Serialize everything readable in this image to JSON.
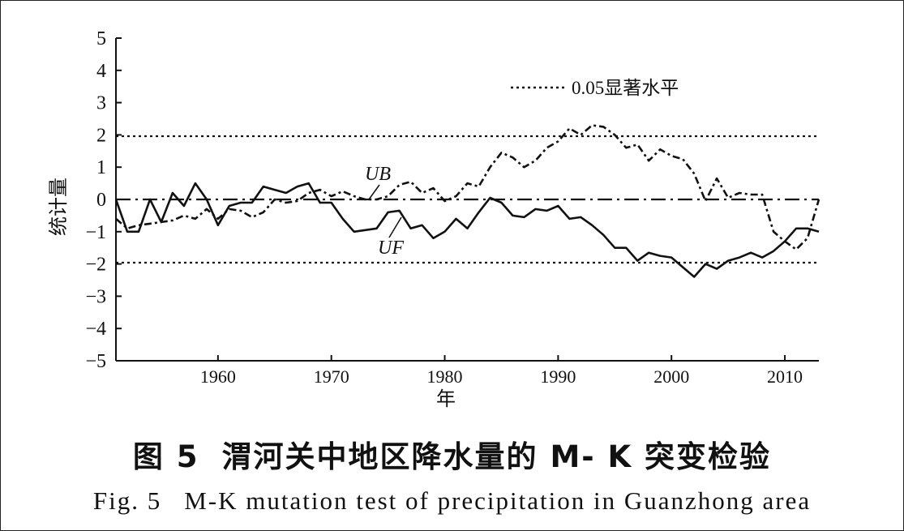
{
  "figure": {
    "caption_cn_label": "图 5",
    "caption_cn_text": "渭河关中地区降水量的 M- K 突变检验",
    "caption_en_label": "Fig. 5",
    "caption_en_text": "M-K mutation test of precipitation in Guanzhong area"
  },
  "chart_data": {
    "type": "line",
    "title": "",
    "xlabel": "年",
    "ylabel": "统计量",
    "xlim": [
      1951,
      2013
    ],
    "ylim": [
      -5,
      5
    ],
    "xticks": [
      1960,
      1970,
      1980,
      1990,
      2000,
      2010
    ],
    "yticks": [
      -5,
      -4,
      -3,
      -2,
      -1,
      0,
      1,
      2,
      3,
      4,
      5
    ],
    "legend": {
      "position": "top-right",
      "entries": [
        "0.05显著水平"
      ]
    },
    "grid": false,
    "reference_lines": [
      {
        "y": 1.96,
        "style": "dotted",
        "label": "0.05显著水平"
      },
      {
        "y": -1.96,
        "style": "dotted",
        "label": "0.05显著水平"
      },
      {
        "y": 0,
        "style": "dashdot"
      }
    ],
    "annotations": [
      "UB",
      "UF"
    ],
    "series": [
      {
        "name": "UF",
        "style": "solid",
        "x": [
          1951,
          1952,
          1953,
          1954,
          1955,
          1956,
          1957,
          1958,
          1959,
          1960,
          1961,
          1962,
          1963,
          1964,
          1965,
          1966,
          1967,
          1968,
          1969,
          1970,
          1971,
          1972,
          1973,
          1974,
          1975,
          1976,
          1977,
          1978,
          1979,
          1980,
          1981,
          1982,
          1983,
          1984,
          1985,
          1986,
          1987,
          1988,
          1989,
          1990,
          1991,
          1992,
          1993,
          1994,
          1995,
          1996,
          1997,
          1998,
          1999,
          2000,
          2001,
          2002,
          2003,
          2004,
          2005,
          2006,
          2007,
          2008,
          2009,
          2010,
          2011,
          2012,
          2013
        ],
        "values": [
          0.0,
          -1.0,
          -1.0,
          0.0,
          -0.7,
          0.2,
          -0.2,
          0.5,
          0.0,
          -0.8,
          -0.2,
          -0.1,
          -0.1,
          0.4,
          0.3,
          0.2,
          0.4,
          0.5,
          -0.1,
          -0.1,
          -0.6,
          -1.0,
          -0.95,
          -0.9,
          -0.4,
          -0.35,
          -0.9,
          -0.8,
          -1.2,
          -1.0,
          -0.6,
          -0.9,
          -0.4,
          0.05,
          -0.1,
          -0.5,
          -0.55,
          -0.3,
          -0.35,
          -0.2,
          -0.6,
          -0.55,
          -0.8,
          -1.1,
          -1.5,
          -1.5,
          -1.9,
          -1.65,
          -1.75,
          -1.8,
          -2.1,
          -2.4,
          -2.0,
          -2.15,
          -1.9,
          -1.8,
          -1.65,
          -1.8,
          -1.6,
          -1.3,
          -0.9,
          -0.9,
          -1.0
        ]
      },
      {
        "name": "UB",
        "style": "dashdot",
        "x": [
          1951,
          1952,
          1953,
          1954,
          1955,
          1956,
          1957,
          1958,
          1959,
          1960,
          1961,
          1962,
          1963,
          1964,
          1965,
          1966,
          1967,
          1968,
          1969,
          1970,
          1971,
          1972,
          1973,
          1974,
          1975,
          1976,
          1977,
          1978,
          1979,
          1980,
          1981,
          1982,
          1983,
          1984,
          1985,
          1986,
          1987,
          1988,
          1989,
          1990,
          1991,
          1992,
          1993,
          1994,
          1995,
          1996,
          1997,
          1998,
          1999,
          2000,
          2001,
          2002,
          2003,
          2004,
          2005,
          2006,
          2007,
          2008,
          2009,
          2010,
          2011,
          2012,
          2013
        ],
        "values": [
          -0.6,
          -0.9,
          -0.8,
          -0.75,
          -0.7,
          -0.65,
          -0.5,
          -0.6,
          -0.3,
          -0.6,
          -0.3,
          -0.35,
          -0.55,
          -0.4,
          0.0,
          -0.1,
          -0.05,
          0.2,
          0.3,
          0.1,
          0.25,
          0.1,
          0.0,
          0.0,
          0.1,
          0.45,
          0.55,
          0.2,
          0.35,
          -0.05,
          0.1,
          0.5,
          0.4,
          1.0,
          1.45,
          1.3,
          1.0,
          1.2,
          1.6,
          1.8,
          2.2,
          2.0,
          2.3,
          2.25,
          2.0,
          1.6,
          1.7,
          1.2,
          1.55,
          1.35,
          1.25,
          0.8,
          -0.05,
          0.65,
          0.05,
          0.2,
          0.15,
          0.15,
          -1.0,
          -1.3,
          -1.55,
          -1.2,
          0.0
        ]
      }
    ]
  }
}
